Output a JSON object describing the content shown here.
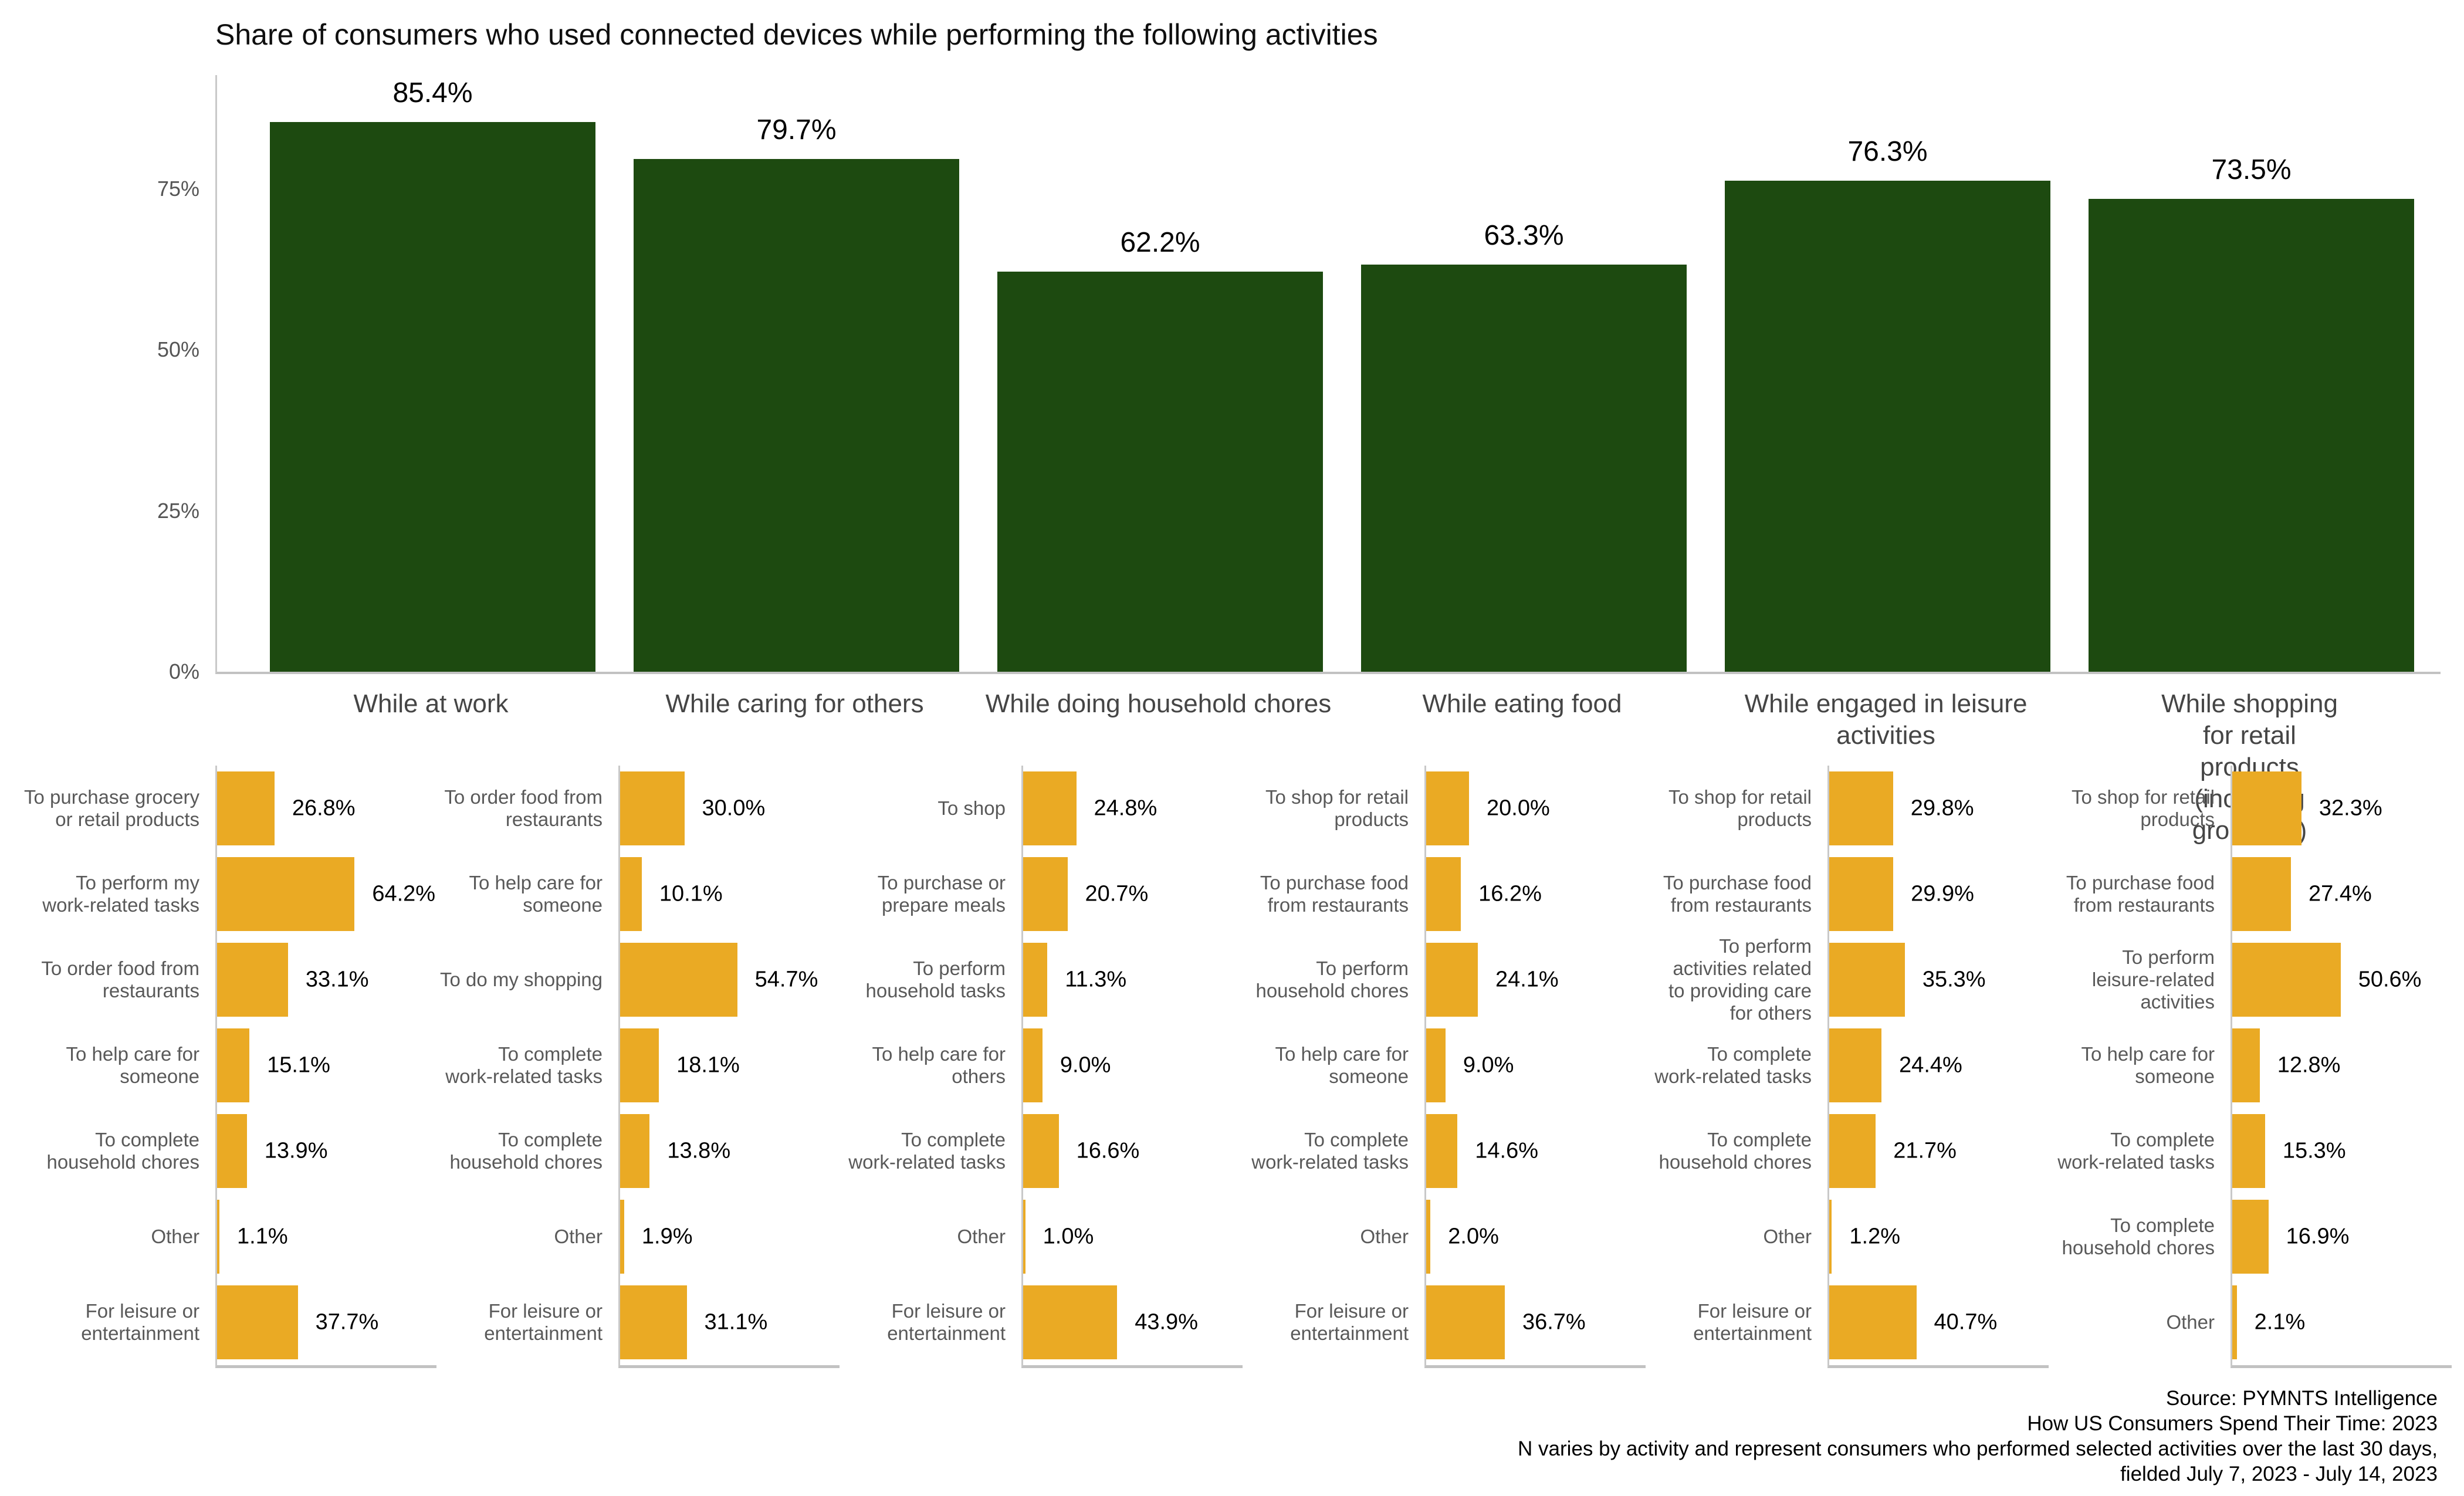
{
  "colors": {
    "bar_green": "#1d4a10",
    "bar_orange": "#eaaa24",
    "axis_line": "#c9c9c9",
    "tick_text": "#555555",
    "category_text": "#454545",
    "mini_label_text": "#595959",
    "value_text": "#000000"
  },
  "chart_data": {
    "main_chart": {
      "type": "bar",
      "title": "Share of consumers who used connected devices while performing the following activities",
      "categories": [
        "While at work",
        "While caring for others",
        "While doing household chores",
        "While eating food",
        "While engaged in leisure\nactivities",
        "While shopping for retail products\n(including groceries)"
      ],
      "values": [
        85.4,
        79.7,
        62.2,
        63.3,
        76.3,
        73.5
      ],
      "value_labels": [
        "85.4%",
        "79.7%",
        "62.2%",
        "63.3%",
        "76.3%",
        "73.5%"
      ],
      "yticks": [
        {
          "label": "0%",
          "value": 0
        },
        {
          "label": "25%",
          "value": 25
        },
        {
          "label": "50%",
          "value": 50
        },
        {
          "label": "75%",
          "value": 75
        }
      ],
      "ylim": [
        0,
        92.7
      ],
      "grid": false,
      "legend": "none"
    },
    "subcharts": [
      {
        "activity": "While at work",
        "type": "bar-horizontal",
        "rows": [
          {
            "label": "To purchase grocery\nor retail products",
            "value": 26.8,
            "value_label": "26.8%"
          },
          {
            "label": "To perform my\nwork-related tasks",
            "value": 64.2,
            "value_label": "64.2%"
          },
          {
            "label": "To order food from\nrestaurants",
            "value": 33.1,
            "value_label": "33.1%"
          },
          {
            "label": "To help care for\nsomeone",
            "value": 15.1,
            "value_label": "15.1%"
          },
          {
            "label": "To complete\nhousehold chores",
            "value": 13.9,
            "value_label": "13.9%"
          },
          {
            "label": "Other",
            "value": 1.1,
            "value_label": "1.1%"
          },
          {
            "label": "For leisure or\nentertainment",
            "value": 37.7,
            "value_label": "37.7%"
          }
        ]
      },
      {
        "activity": "While caring for others",
        "type": "bar-horizontal",
        "rows": [
          {
            "label": "To order food from\nrestaurants",
            "value": 30.0,
            "value_label": "30.0%"
          },
          {
            "label": "To help care for\nsomeone",
            "value": 10.1,
            "value_label": "10.1%"
          },
          {
            "label": "To do my shopping",
            "value": 54.7,
            "value_label": "54.7%"
          },
          {
            "label": "To complete\nwork-related tasks",
            "value": 18.1,
            "value_label": "18.1%"
          },
          {
            "label": "To complete\nhousehold chores",
            "value": 13.8,
            "value_label": "13.8%"
          },
          {
            "label": "Other",
            "value": 1.9,
            "value_label": "1.9%"
          },
          {
            "label": "For leisure or\nentertainment",
            "value": 31.1,
            "value_label": "31.1%"
          }
        ]
      },
      {
        "activity": "While doing household chores",
        "type": "bar-horizontal",
        "rows": [
          {
            "label": "To shop",
            "value": 24.8,
            "value_label": "24.8%"
          },
          {
            "label": "To purchase or\nprepare meals",
            "value": 20.7,
            "value_label": "20.7%"
          },
          {
            "label": "To perform\nhousehold tasks",
            "value": 11.3,
            "value_label": "11.3%"
          },
          {
            "label": "To help care for\nothers",
            "value": 9.0,
            "value_label": "9.0%"
          },
          {
            "label": "To complete\nwork-related tasks",
            "value": 16.6,
            "value_label": "16.6%"
          },
          {
            "label": "Other",
            "value": 1.0,
            "value_label": "1.0%"
          },
          {
            "label": "For leisure or\nentertainment",
            "value": 43.9,
            "value_label": "43.9%"
          }
        ]
      },
      {
        "activity": "While eating food",
        "type": "bar-horizontal",
        "rows": [
          {
            "label": "To shop for retail\nproducts",
            "value": 20.0,
            "value_label": "20.0%"
          },
          {
            "label": "To purchase food\nfrom restaurants",
            "value": 16.2,
            "value_label": "16.2%"
          },
          {
            "label": "To perform\nhousehold chores",
            "value": 24.1,
            "value_label": "24.1%"
          },
          {
            "label": "To help care for\nsomeone",
            "value": 9.0,
            "value_label": "9.0%"
          },
          {
            "label": "To complete\nwork-related tasks",
            "value": 14.6,
            "value_label": "14.6%"
          },
          {
            "label": "Other",
            "value": 2.0,
            "value_label": "2.0%"
          },
          {
            "label": "For leisure or\nentertainment",
            "value": 36.7,
            "value_label": "36.7%"
          }
        ]
      },
      {
        "activity": "While engaged in leisure activities",
        "type": "bar-horizontal",
        "rows": [
          {
            "label": "To shop for retail\nproducts",
            "value": 29.8,
            "value_label": "29.8%"
          },
          {
            "label": "To purchase food\nfrom restaurants",
            "value": 29.9,
            "value_label": "29.9%"
          },
          {
            "label": "To perform\nactivities related\nto providing care\nfor others",
            "value": 35.3,
            "value_label": "35.3%"
          },
          {
            "label": "To complete\nwork-related tasks",
            "value": 24.4,
            "value_label": "24.4%"
          },
          {
            "label": "To complete\nhousehold chores",
            "value": 21.7,
            "value_label": "21.7%"
          },
          {
            "label": "Other",
            "value": 1.2,
            "value_label": "1.2%"
          },
          {
            "label": "For leisure or\nentertainment",
            "value": 40.7,
            "value_label": "40.7%"
          }
        ]
      },
      {
        "activity": "While shopping for retail products (including groceries)",
        "type": "bar-horizontal",
        "rows": [
          {
            "label": "To shop for retail\nproducts",
            "value": 32.3,
            "value_label": "32.3%"
          },
          {
            "label": "To purchase food\nfrom restaurants",
            "value": 27.4,
            "value_label": "27.4%"
          },
          {
            "label": "To perform\nleisure-related\nactivities",
            "value": 50.6,
            "value_label": "50.6%"
          },
          {
            "label": "To help care for\nsomeone",
            "value": 12.8,
            "value_label": "12.8%"
          },
          {
            "label": "To complete\nwork-related tasks",
            "value": 15.3,
            "value_label": "15.3%"
          },
          {
            "label": "To complete\nhousehold chores",
            "value": 16.9,
            "value_label": "16.9%"
          },
          {
            "label": "Other",
            "value": 2.1,
            "value_label": "2.1%"
          }
        ]
      }
    ],
    "footer_lines": [
      "Source: PYMNTS Intelligence",
      "How US Consumers Spend Their Time: 2023",
      "N varies by activity and represent consumers who performed selected activities over the last 30 days,",
      "fielded July 7, 2023 - July 14, 2023"
    ]
  }
}
